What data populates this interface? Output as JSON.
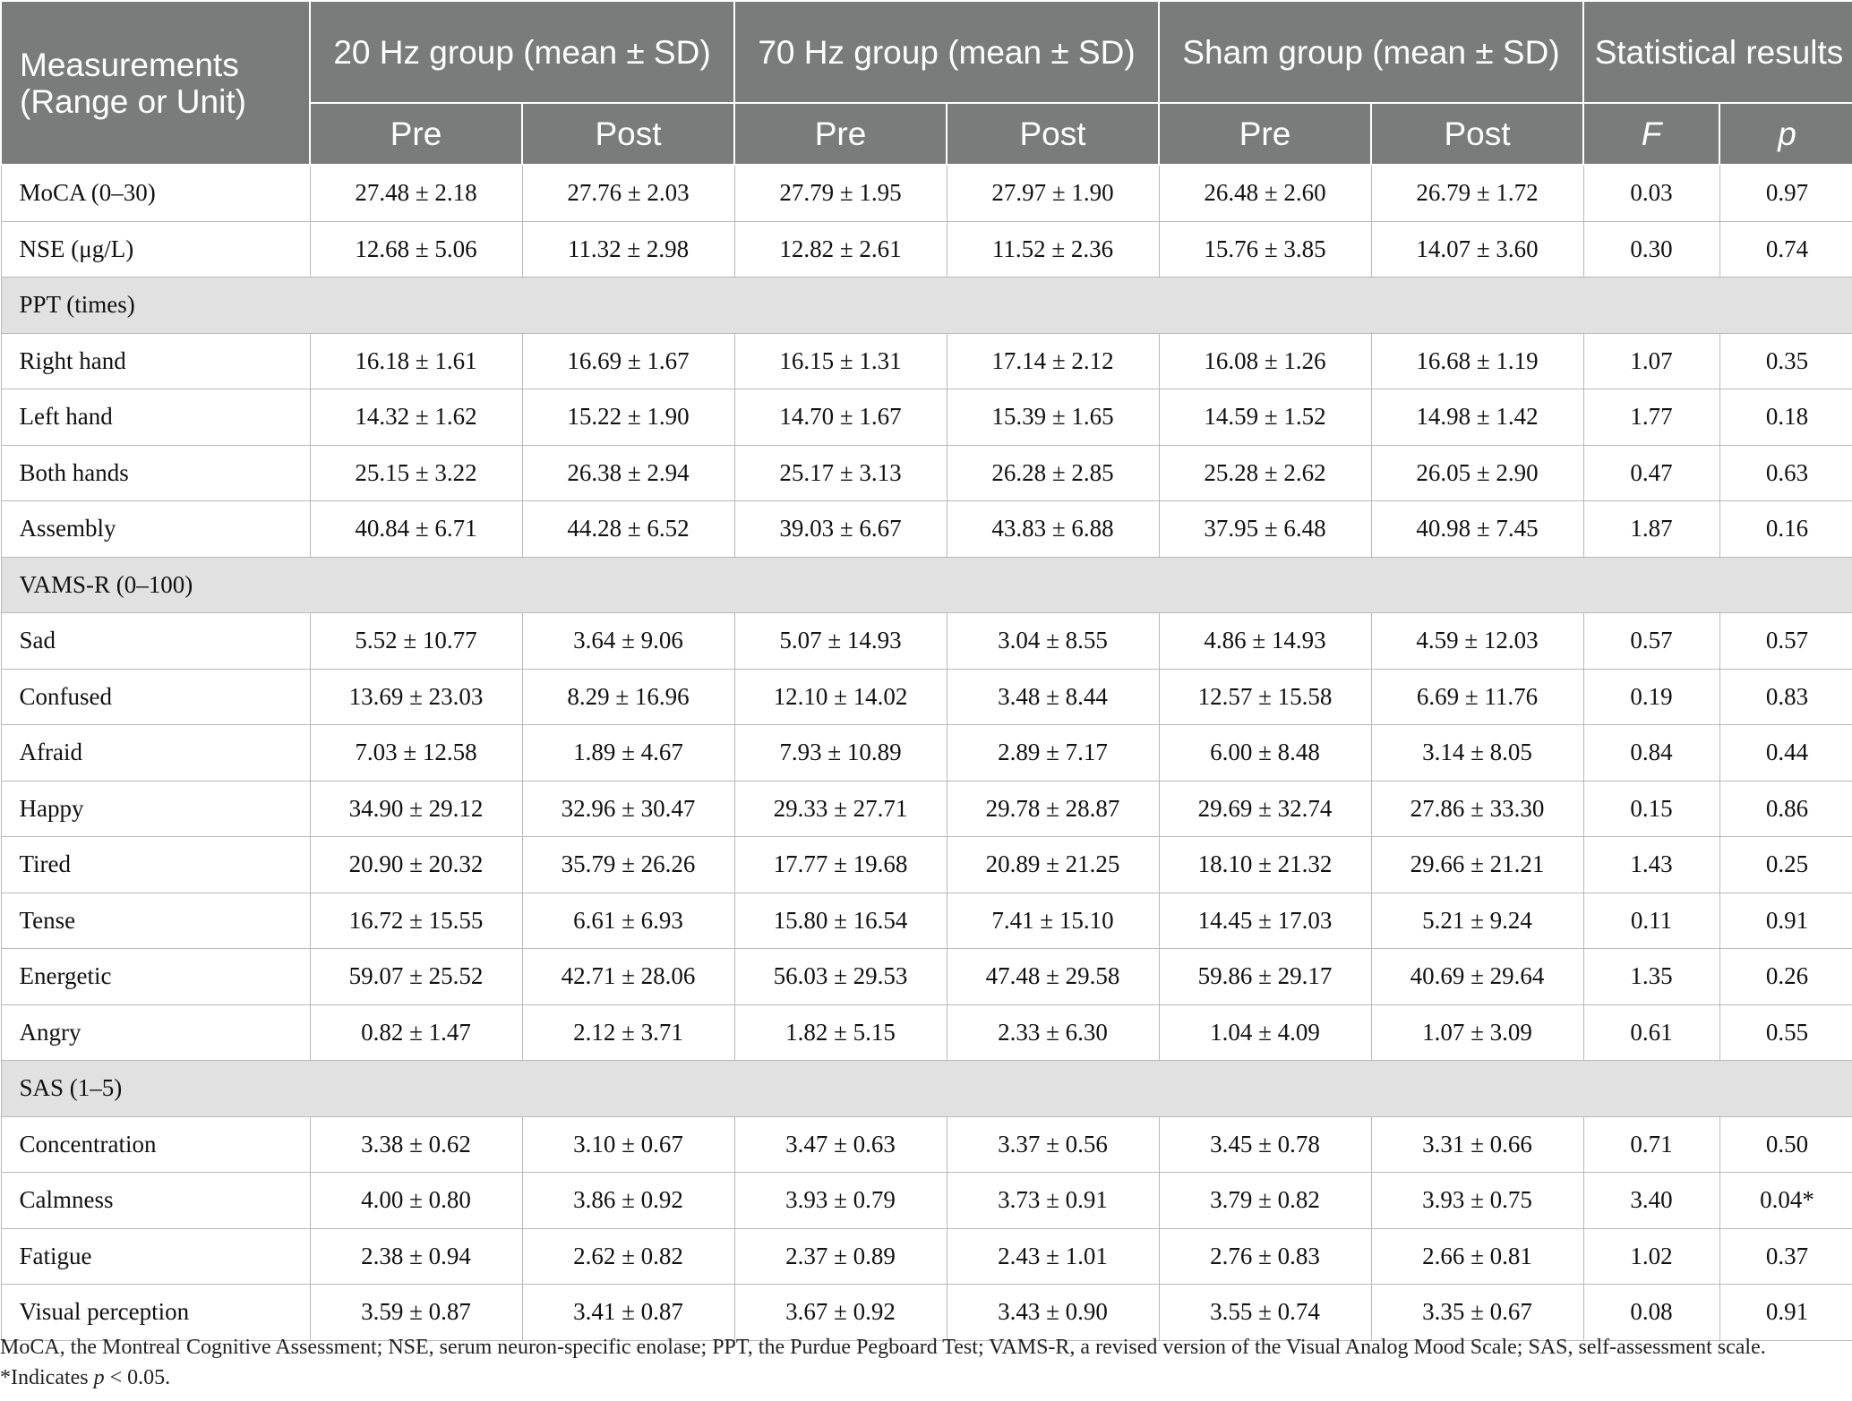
{
  "header": {
    "measurements": "Measurements (Range or Unit)",
    "group_20": "20 Hz group (mean ± SD)",
    "group_70": "70 Hz group (mean ± SD)",
    "group_sham": "Sham group (mean ± SD)",
    "stats": "Statistical results",
    "pre": "Pre",
    "post": "Post",
    "f": "F",
    "p": "p"
  },
  "rows": [
    {
      "type": "data",
      "label": "MoCA (0–30)",
      "values": [
        "27.48 ± 2.18",
        "27.76 ± 2.03",
        "27.79 ± 1.95",
        "27.97 ± 1.90",
        "26.48 ± 2.60",
        "26.79 ± 1.72",
        "0.03",
        "0.97"
      ]
    },
    {
      "type": "data",
      "label": "NSE (μg/L)",
      "values": [
        "12.68 ± 5.06",
        "11.32 ± 2.98",
        "12.82 ± 2.61",
        "11.52 ± 2.36",
        "15.76 ± 3.85",
        "14.07 ± 3.60",
        "0.30",
        "0.74"
      ]
    },
    {
      "type": "section",
      "label": "PPT (times)"
    },
    {
      "type": "data",
      "label": "Right hand",
      "values": [
        "16.18 ± 1.61",
        "16.69 ± 1.67",
        "16.15 ± 1.31",
        "17.14 ± 2.12",
        "16.08 ± 1.26",
        "16.68 ± 1.19",
        "1.07",
        "0.35"
      ]
    },
    {
      "type": "data",
      "label": "Left hand",
      "values": [
        "14.32 ± 1.62",
        "15.22 ± 1.90",
        "14.70 ± 1.67",
        "15.39 ± 1.65",
        "14.59 ± 1.52",
        "14.98 ± 1.42",
        "1.77",
        "0.18"
      ]
    },
    {
      "type": "data",
      "label": "Both hands",
      "values": [
        "25.15 ± 3.22",
        "26.38 ± 2.94",
        "25.17 ± 3.13",
        "26.28 ± 2.85",
        "25.28 ± 2.62",
        "26.05 ± 2.90",
        "0.47",
        "0.63"
      ]
    },
    {
      "type": "data",
      "label": "Assembly",
      "values": [
        "40.84 ± 6.71",
        "44.28 ± 6.52",
        "39.03 ± 6.67",
        "43.83 ± 6.88",
        "37.95 ± 6.48",
        "40.98 ± 7.45",
        "1.87",
        "0.16"
      ]
    },
    {
      "type": "section",
      "label": "VAMS-R (0–100)"
    },
    {
      "type": "data",
      "label": "Sad",
      "values": [
        "5.52 ± 10.77",
        "3.64 ± 9.06",
        "5.07 ± 14.93",
        "3.04 ± 8.55",
        "4.86 ± 14.93",
        "4.59 ± 12.03",
        "0.57",
        "0.57"
      ]
    },
    {
      "type": "data",
      "label": "Confused",
      "values": [
        "13.69 ± 23.03",
        "8.29 ± 16.96",
        "12.10 ± 14.02",
        "3.48 ± 8.44",
        "12.57 ± 15.58",
        "6.69 ± 11.76",
        "0.19",
        "0.83"
      ]
    },
    {
      "type": "data",
      "label": "Afraid",
      "values": [
        "7.03 ± 12.58",
        "1.89 ± 4.67",
        "7.93 ± 10.89",
        "2.89 ± 7.17",
        "6.00 ± 8.48",
        "3.14 ± 8.05",
        "0.84",
        "0.44"
      ]
    },
    {
      "type": "data",
      "label": "Happy",
      "values": [
        "34.90 ± 29.12",
        "32.96 ± 30.47",
        "29.33 ± 27.71",
        "29.78 ± 28.87",
        "29.69 ± 32.74",
        "27.86 ± 33.30",
        "0.15",
        "0.86"
      ]
    },
    {
      "type": "data",
      "label": "Tired",
      "values": [
        "20.90 ± 20.32",
        "35.79 ± 26.26",
        "17.77 ± 19.68",
        "20.89 ± 21.25",
        "18.10 ± 21.32",
        "29.66 ± 21.21",
        "1.43",
        "0.25"
      ]
    },
    {
      "type": "data",
      "label": "Tense",
      "values": [
        "16.72 ± 15.55",
        "6.61 ± 6.93",
        "15.80 ± 16.54",
        "7.41 ± 15.10",
        "14.45 ± 17.03",
        "5.21 ± 9.24",
        "0.11",
        "0.91"
      ]
    },
    {
      "type": "data",
      "label": "Energetic",
      "values": [
        "59.07 ± 25.52",
        "42.71 ± 28.06",
        "56.03 ± 29.53",
        "47.48 ± 29.58",
        "59.86 ± 29.17",
        "40.69 ± 29.64",
        "1.35",
        "0.26"
      ]
    },
    {
      "type": "data",
      "label": "Angry",
      "values": [
        "0.82 ± 1.47",
        "2.12 ± 3.71",
        "1.82 ± 5.15",
        "2.33 ± 6.30",
        "1.04 ± 4.09",
        "1.07 ± 3.09",
        "0.61",
        "0.55"
      ]
    },
    {
      "type": "section",
      "label": "SAS (1–5)"
    },
    {
      "type": "data",
      "label": "Concentration",
      "values": [
        "3.38 ± 0.62",
        "3.10 ± 0.67",
        "3.47 ± 0.63",
        "3.37 ± 0.56",
        "3.45 ± 0.78",
        "3.31 ± 0.66",
        "0.71",
        "0.50"
      ]
    },
    {
      "type": "data",
      "label": "Calmness",
      "values": [
        "4.00 ± 0.80",
        "3.86 ± 0.92",
        "3.93 ± 0.79",
        "3.73 ± 0.91",
        "3.79 ± 0.82",
        "3.93 ± 0.75",
        "3.40",
        "0.04*"
      ]
    },
    {
      "type": "data",
      "label": "Fatigue",
      "values": [
        "2.38 ± 0.94",
        "2.62 ± 0.82",
        "2.37 ± 0.89",
        "2.43 ± 1.01",
        "2.76 ± 0.83",
        "2.66 ± 0.81",
        "1.02",
        "0.37"
      ]
    },
    {
      "type": "data",
      "label": "Visual perception",
      "values": [
        "3.59 ± 0.87",
        "3.41 ± 0.87",
        "3.67 ± 0.92",
        "3.43 ± 0.90",
        "3.55 ± 0.74",
        "3.35 ± 0.67",
        "0.08",
        "0.91"
      ]
    }
  ],
  "footnote": {
    "text": "MoCA, the Montreal Cognitive Assessment; NSE, serum neuron-specific enolase; PPT, the Purdue Pegboard Test; VAMS-R, a revised version of the Visual Analog Mood Scale; SAS, self-assessment scale. *Indicates ",
    "p_symbol": "p",
    "threshold": " < 0.05."
  }
}
